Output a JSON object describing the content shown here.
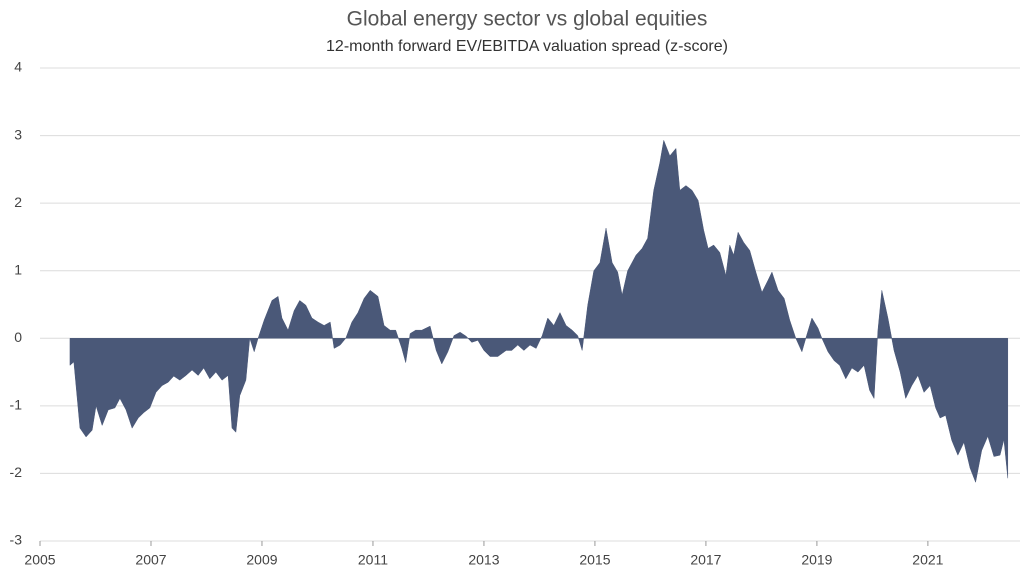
{
  "chart_data": {
    "type": "area",
    "title": "Global energy sector vs global equities",
    "subtitle": "12-month forward EV/EBITDA valuation spread (z-score)",
    "color": "#4a5878",
    "grid": true,
    "xlim": [
      2005,
      2022.66
    ],
    "xticks": [
      2005,
      2007,
      2009,
      2011,
      2013,
      2015,
      2017,
      2019,
      2021
    ],
    "ylim": [
      -3,
      4
    ],
    "yticks": [
      -3,
      -2,
      -1,
      0,
      1,
      2,
      3,
      4
    ],
    "x": [
      2005.54,
      2005.61,
      2005.72,
      2005.83,
      2005.94,
      2006.01,
      2006.12,
      2006.23,
      2006.35,
      2006.44,
      2006.55,
      2006.66,
      2006.77,
      2006.87,
      2006.98,
      2007.09,
      2007.2,
      2007.31,
      2007.41,
      2007.52,
      2007.63,
      2007.74,
      2007.85,
      2007.95,
      2008.06,
      2008.17,
      2008.28,
      2008.39,
      2008.46,
      2008.53,
      2008.6,
      2008.71,
      2008.78,
      2008.86,
      2008.93,
      2009.04,
      2009.18,
      2009.29,
      2009.36,
      2009.47,
      2009.58,
      2009.68,
      2009.79,
      2009.9,
      2010.01,
      2010.12,
      2010.23,
      2010.3,
      2010.41,
      2010.51,
      2010.62,
      2010.73,
      2010.84,
      2010.95,
      2011.09,
      2011.2,
      2011.31,
      2011.41,
      2011.52,
      2011.59,
      2011.67,
      2011.77,
      2011.88,
      2012.03,
      2012.14,
      2012.24,
      2012.35,
      2012.46,
      2012.57,
      2012.68,
      2012.78,
      2012.89,
      2013.0,
      2013.11,
      2013.25,
      2013.4,
      2013.5,
      2013.61,
      2013.72,
      2013.83,
      2013.94,
      2014.05,
      2014.15,
      2014.26,
      2014.37,
      2014.48,
      2014.59,
      2014.69,
      2014.77,
      2014.87,
      2014.98,
      2015.09,
      2015.2,
      2015.31,
      2015.41,
      2015.49,
      2015.59,
      2015.74,
      2015.85,
      2015.95,
      2016.06,
      2016.17,
      2016.24,
      2016.35,
      2016.46,
      2016.53,
      2016.64,
      2016.75,
      2016.86,
      2016.96,
      2017.04,
      2017.14,
      2017.25,
      2017.36,
      2017.43,
      2017.5,
      2017.58,
      2017.68,
      2017.79,
      2017.9,
      2018.01,
      2018.12,
      2018.19,
      2018.3,
      2018.41,
      2018.51,
      2018.62,
      2018.73,
      2018.8,
      2018.91,
      2019.02,
      2019.09,
      2019.2,
      2019.31,
      2019.41,
      2019.52,
      2019.63,
      2019.74,
      2019.85,
      2019.95,
      2020.03,
      2020.1,
      2020.17,
      2020.28,
      2020.39,
      2020.5,
      2020.6,
      2020.71,
      2020.82,
      2020.93,
      2021.04,
      2021.14,
      2021.22,
      2021.32,
      2021.43,
      2021.54,
      2021.65,
      2021.76,
      2021.86,
      2021.97,
      2022.08,
      2022.19,
      2022.3,
      2022.37,
      2022.44
    ],
    "values": [
      -0.4,
      -0.35,
      -1.33,
      -1.46,
      -1.36,
      -1.0,
      -1.29,
      -1.06,
      -1.03,
      -0.89,
      -1.06,
      -1.33,
      -1.18,
      -1.1,
      -1.03,
      -0.8,
      -0.7,
      -0.65,
      -0.56,
      -0.62,
      -0.55,
      -0.47,
      -0.55,
      -0.44,
      -0.6,
      -0.5,
      -0.62,
      -0.55,
      -1.33,
      -1.39,
      -0.85,
      -0.62,
      0,
      -0.2,
      0,
      0.27,
      0.56,
      0.62,
      0.3,
      0.12,
      0.41,
      0.56,
      0.49,
      0.3,
      0.24,
      0.19,
      0.24,
      -0.15,
      -0.1,
      0,
      0.24,
      0.38,
      0.59,
      0.71,
      0.62,
      0.19,
      0.12,
      0.12,
      -0.15,
      -0.36,
      0.07,
      0.12,
      0.12,
      0.18,
      -0.18,
      -0.38,
      -0.2,
      0.04,
      0.09,
      0.03,
      -0.06,
      -0.03,
      -0.18,
      -0.27,
      -0.27,
      -0.18,
      -0.18,
      -0.1,
      -0.18,
      -0.1,
      -0.15,
      0.04,
      0.3,
      0.19,
      0.38,
      0.19,
      0.12,
      0.04,
      -0.18,
      0.49,
      1.0,
      1.12,
      1.63,
      1.12,
      0.98,
      0.64,
      1.0,
      1.23,
      1.33,
      1.48,
      2.19,
      2.6,
      2.93,
      2.7,
      2.81,
      2.19,
      2.26,
      2.19,
      2.04,
      1.6,
      1.33,
      1.38,
      1.27,
      0.93,
      1.38,
      1.23,
      1.57,
      1.42,
      1.3,
      0.98,
      0.68,
      0.86,
      0.98,
      0.71,
      0.59,
      0.27,
      0,
      -0.2,
      0,
      0.3,
      0.15,
      0,
      -0.2,
      -0.33,
      -0.4,
      -0.6,
      -0.44,
      -0.5,
      -0.4,
      -0.77,
      -0.89,
      0.12,
      0.71,
      0.3,
      -0.18,
      -0.5,
      -0.89,
      -0.7,
      -0.55,
      -0.8,
      -0.7,
      -1.03,
      -1.18,
      -1.14,
      -1.51,
      -1.73,
      -1.54,
      -1.92,
      -2.13,
      -1.66,
      -1.45,
      -1.75,
      -1.73,
      -1.5,
      -2.07
    ]
  }
}
